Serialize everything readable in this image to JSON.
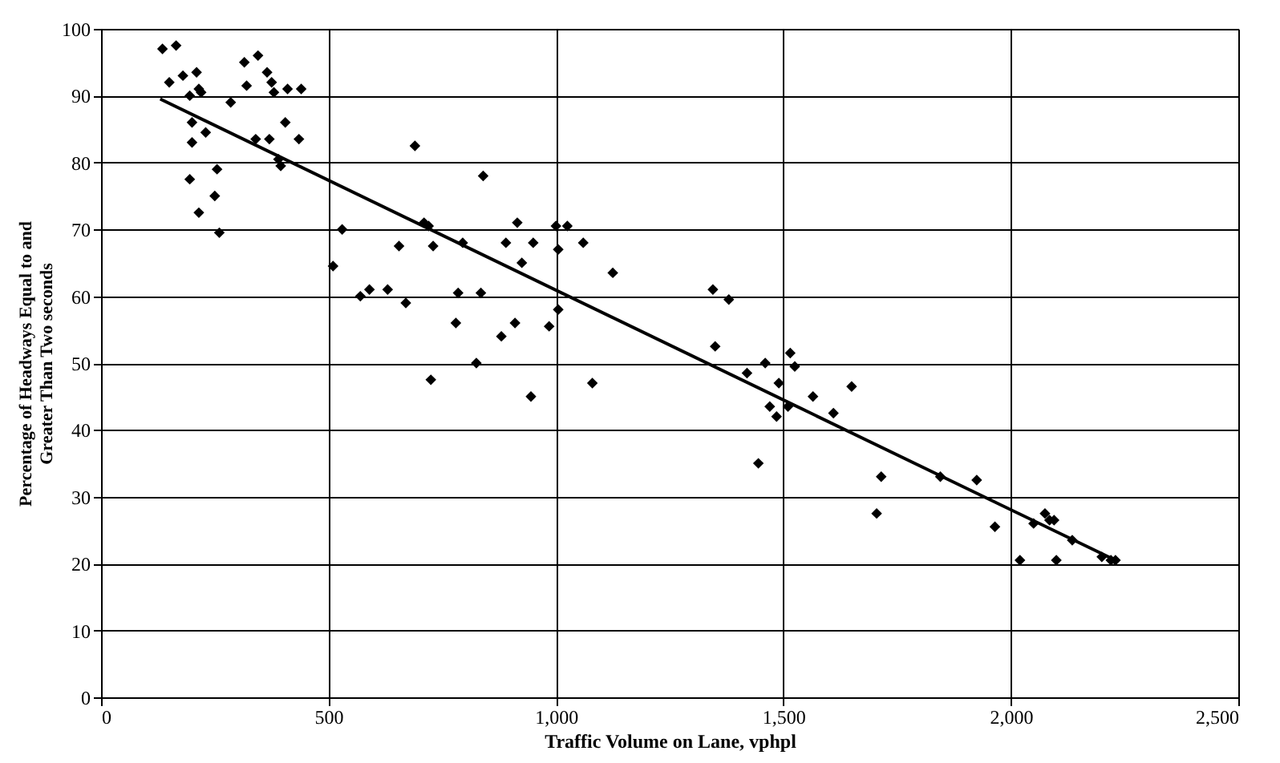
{
  "chart_data": {
    "type": "scatter",
    "xlabel": "Traffic Volume on Lane, vphpl",
    "ylabel": "Percentage of Headways Equal to and Greater Than Two seconds",
    "xlim": [
      0,
      2500
    ],
    "xticks": [
      0,
      500,
      {
        "value": 1000,
        "label": "1,000"
      },
      {
        "value": 1500,
        "label": "1,500"
      },
      {
        "value": 2000,
        "label": "2,000"
      },
      {
        "value": 2500,
        "label": "2,500"
      }
    ],
    "ylim": [
      0,
      100
    ],
    "yticks": [
      0,
      10,
      20,
      30,
      40,
      50,
      60,
      70,
      80,
      90,
      100
    ],
    "grid": true,
    "series": [
      {
        "color": "#000000",
        "marker": "diamond",
        "x": [
          135,
          165,
          150,
          180,
          195,
          210,
          215,
          220,
          200,
          200,
          230,
          255,
          250,
          260,
          195,
          215,
          285,
          315,
          345,
          320,
          340,
          365,
          375,
          370,
          380,
          390,
          395,
          410,
          405,
          440,
          435,
          510,
          530,
          570,
          590,
          630,
          655,
          670,
          690,
          710,
          720,
          725,
          730,
          780,
          785,
          795,
          825,
          835,
          840,
          880,
          890,
          910,
          915,
          925,
          945,
          950,
          985,
          1000,
          1005,
          1005,
          1025,
          1060,
          1080,
          1125,
          1345,
          1350,
          1380,
          1420,
          1445,
          1460,
          1470,
          1485,
          1490,
          1510,
          1515,
          1525,
          1565,
          1610,
          1650,
          1705,
          1715,
          1845,
          1925,
          1965,
          2020,
          2050,
          2075,
          2085,
          2095,
          2100,
          2135,
          2200,
          2220,
          2230
        ],
        "values": [
          97,
          97.5,
          92,
          93,
          90,
          93.5,
          91,
          90.5,
          86,
          83,
          84.5,
          79,
          75,
          69.5,
          77.5,
          72.5,
          89,
          95,
          96,
          91.5,
          83.5,
          93.5,
          92,
          83.5,
          90.5,
          80.5,
          79.5,
          91,
          86,
          91,
          83.5,
          64.5,
          70,
          60,
          61,
          61,
          67.5,
          59,
          82.5,
          71,
          70.5,
          47.5,
          67.5,
          56,
          60.5,
          68,
          50,
          60.5,
          78,
          54,
          68,
          56,
          71,
          65,
          45,
          68,
          55.5,
          70.5,
          67,
          58,
          70.5,
          68,
          47,
          63.5,
          61,
          52.5,
          59.5,
          48.5,
          35,
          50,
          43.5,
          42,
          47,
          43.5,
          51.5,
          49.5,
          45,
          42.5,
          46.5,
          27.5,
          33,
          33,
          32.5,
          25.5,
          20.5,
          26,
          27.5,
          26.5,
          26.5,
          20.5,
          23.5,
          21,
          20.5,
          20.5
        ]
      },
      {
        "type": "line",
        "color": "#000000",
        "marker": "none",
        "line_style": "solid",
        "x": [
          130,
          2230
        ],
        "values": [
          89.5,
          20.5
        ]
      }
    ]
  }
}
